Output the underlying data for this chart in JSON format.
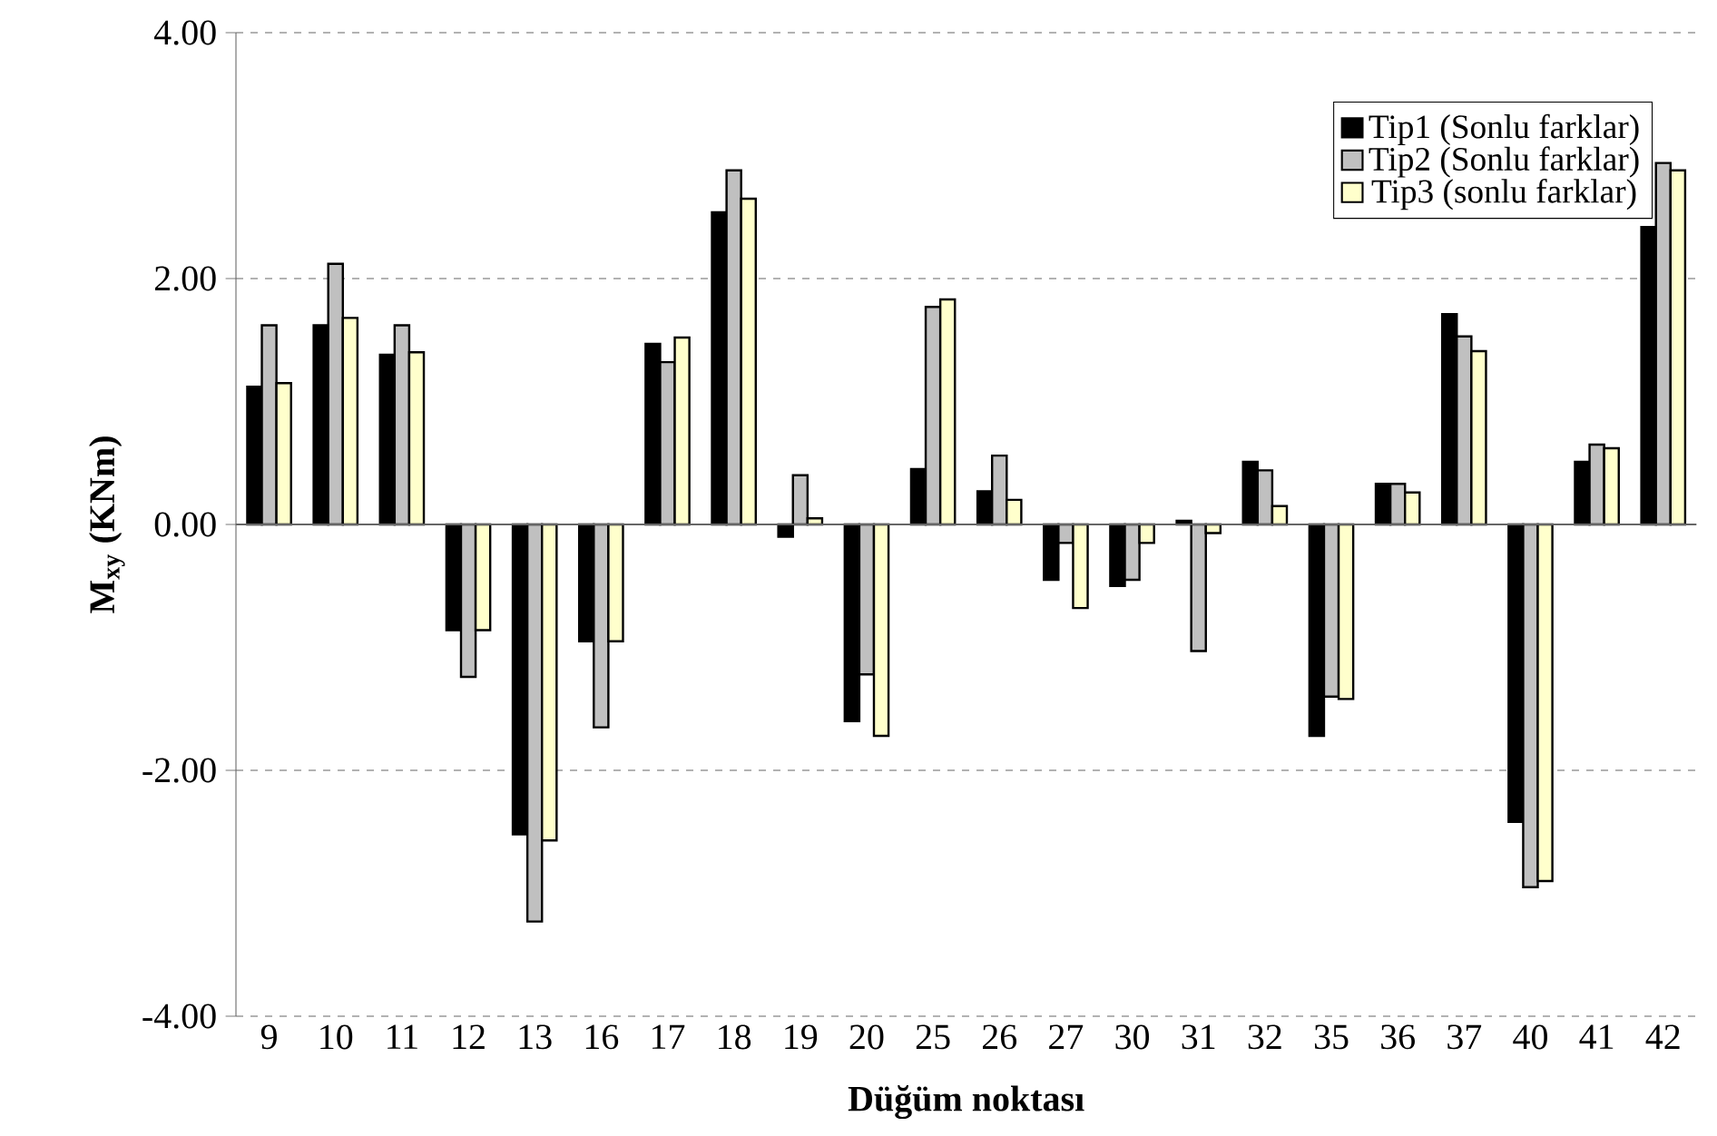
{
  "chart_data": {
    "type": "bar",
    "xlabel": "Düğüm noktası",
    "ylabel": "M$_{xy}$ (KNm)",
    "categories": [
      "9",
      "10",
      "11",
      "12",
      "13",
      "16",
      "17",
      "18",
      "19",
      "20",
      "25",
      "26",
      "27",
      "30",
      "31",
      "32",
      "35",
      "36",
      "37",
      "40",
      "41",
      "42"
    ],
    "series": [
      {
        "name": "Tip1 (Sonlu farklar)",
        "color": "#000000",
        "values": [
          1.12,
          1.62,
          1.38,
          -0.86,
          -2.52,
          -0.95,
          1.47,
          2.54,
          -0.1,
          -1.6,
          0.45,
          0.27,
          -0.45,
          -0.5,
          0.03,
          0.51,
          -1.72,
          0.33,
          1.71,
          -2.42,
          0.51,
          2.42
        ]
      },
      {
        "name": "Tip2 (Sonlu farklar)",
        "color": "#c0c0c0",
        "values": [
          1.62,
          2.12,
          1.62,
          -1.24,
          -3.23,
          -1.65,
          1.32,
          2.88,
          0.4,
          -1.22,
          1.77,
          0.56,
          -0.15,
          -0.45,
          -1.03,
          0.44,
          -1.4,
          0.33,
          1.53,
          -2.95,
          0.65,
          2.94
        ]
      },
      {
        "name": "Tip3 (sonlu farklar)",
        "color": "#ffffcc",
        "values": [
          1.15,
          1.68,
          1.4,
          -0.86,
          -2.57,
          -0.95,
          1.52,
          2.65,
          0.05,
          -1.72,
          1.83,
          0.2,
          -0.68,
          -0.15,
          -0.07,
          0.15,
          -1.42,
          0.26,
          1.41,
          -2.9,
          0.62,
          2.88
        ]
      }
    ],
    "ylim": [
      -4,
      4
    ],
    "yticks": [
      {
        "value": -4,
        "label": "-4.00"
      },
      {
        "value": -2,
        "label": "-2.00"
      },
      {
        "value": 0,
        "label": "0.00"
      },
      {
        "value": 2,
        "label": "2.00"
      },
      {
        "value": 4,
        "label": "4.00"
      }
    ],
    "grid": "y",
    "legend": "top right"
  }
}
